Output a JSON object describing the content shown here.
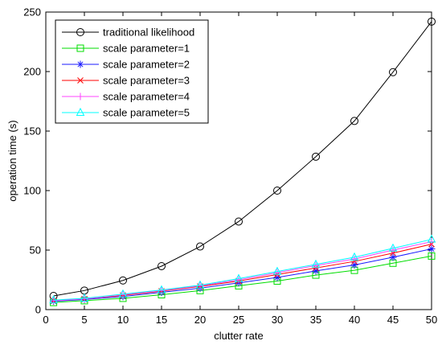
{
  "chart_data": {
    "type": "line",
    "title": "",
    "xlabel": "clutter rate",
    "ylabel": "operation time (s)",
    "xlim": [
      0,
      50
    ],
    "ylim": [
      0,
      250
    ],
    "xticks": [
      0,
      5,
      10,
      15,
      20,
      25,
      30,
      35,
      40,
      45,
      50
    ],
    "yticks": [
      0,
      50,
      100,
      150,
      200,
      250
    ],
    "grid": false,
    "legend_position": "top-left",
    "x": [
      1,
      5,
      10,
      15,
      20,
      25,
      30,
      35,
      40,
      45,
      50
    ],
    "series": [
      {
        "name": "traditional likelihood",
        "color": "#000000",
        "marker": "circle",
        "values": [
          11.5,
          16,
          24.5,
          36.5,
          53,
          74,
          100,
          128.5,
          158.5,
          199.5,
          242
        ]
      },
      {
        "name": "scale parameter=1",
        "color": "#00dd00",
        "marker": "square",
        "values": [
          6,
          7.5,
          9.5,
          12.5,
          16,
          20,
          24,
          29,
          33,
          39,
          45
        ]
      },
      {
        "name": "scale parameter=2",
        "color": "#1a1aff",
        "marker": "star",
        "values": [
          7,
          8.5,
          11,
          14.5,
          18,
          22.5,
          27,
          32.5,
          37.5,
          44,
          51
        ]
      },
      {
        "name": "scale parameter=3",
        "color": "#ff0000",
        "marker": "x",
        "values": [
          7.5,
          9,
          12,
          15.5,
          19.5,
          24,
          29.5,
          35,
          40.5,
          47.5,
          55
        ]
      },
      {
        "name": "scale parameter=4",
        "color": "#ff44ff",
        "marker": "plus",
        "values": [
          7.5,
          9,
          12.5,
          16,
          20,
          25,
          31,
          37,
          42.5,
          50,
          57
        ]
      },
      {
        "name": "scale parameter=5",
        "color": "#00ffff",
        "marker": "triangle",
        "values": [
          8,
          9.5,
          13,
          16.5,
          20.5,
          26,
          32,
          38,
          44,
          51.5,
          59
        ]
      }
    ]
  }
}
